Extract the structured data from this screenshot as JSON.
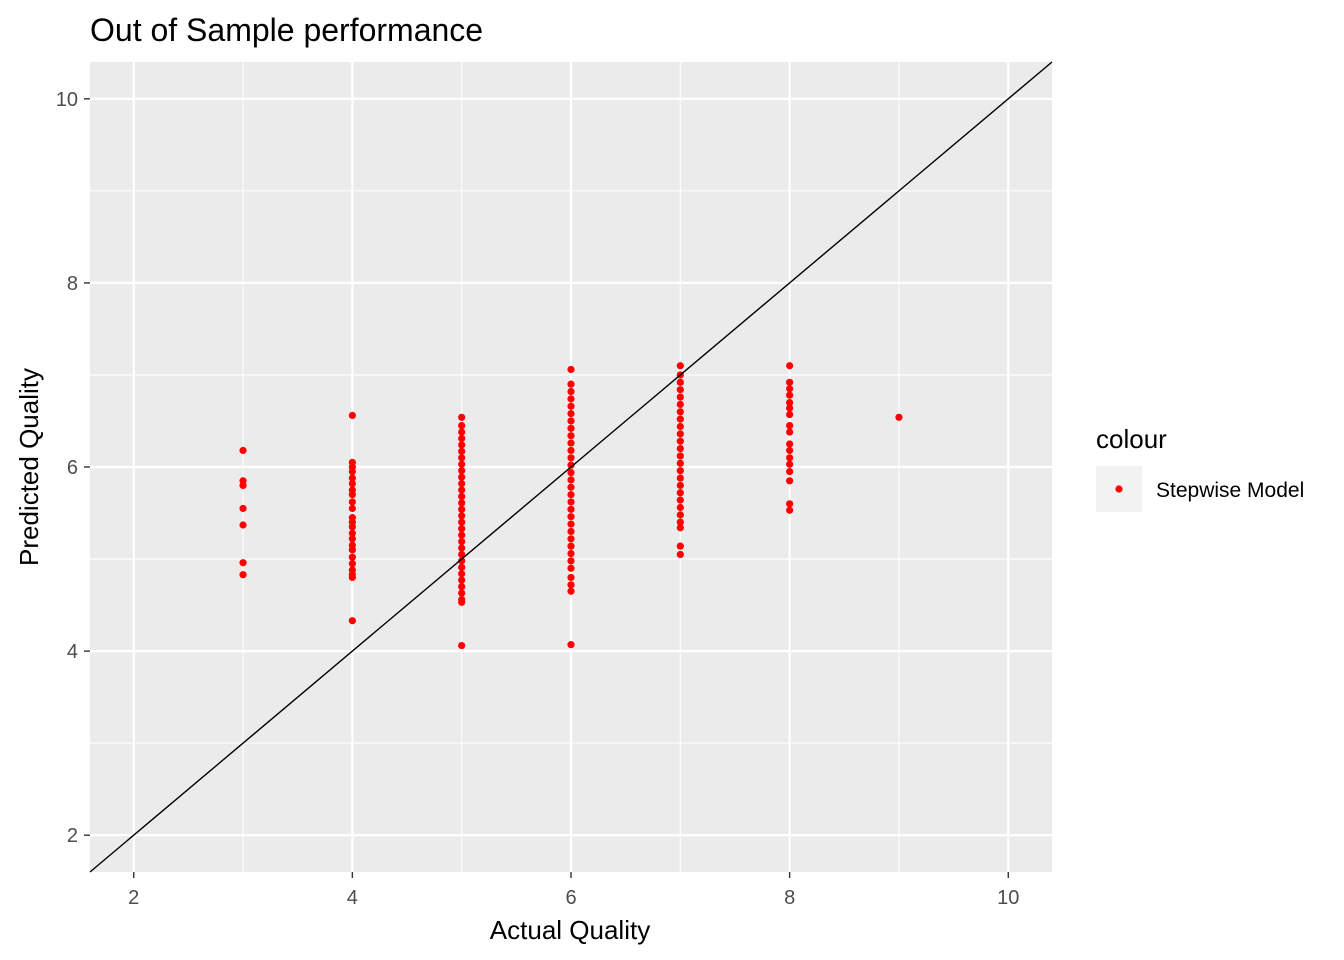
{
  "chart_data": {
    "type": "scatter",
    "title": "Out of Sample performance",
    "xlabel": "Actual Quality",
    "ylabel": "Predicted Quality",
    "xlim": [
      1.6,
      10.4
    ],
    "ylim": [
      1.6,
      10.4
    ],
    "x_ticks": [
      2,
      4,
      6,
      8,
      10
    ],
    "y_ticks": [
      2,
      4,
      6,
      8,
      10
    ],
    "x_tick_labels": [
      "2",
      "4",
      "6",
      "8",
      "10"
    ],
    "y_tick_labels": [
      "2",
      "4",
      "6",
      "8",
      "10"
    ],
    "grid": true,
    "reference_line": {
      "slope": 1,
      "intercept": 0,
      "color": "#000000"
    },
    "legend": {
      "title": "colour",
      "position": "right"
    },
    "series": [
      {
        "name": "Stepwise Model",
        "color": "#ff0000",
        "points": [
          {
            "x": 3,
            "y": 6.18
          },
          {
            "x": 3,
            "y": 5.85
          },
          {
            "x": 3,
            "y": 5.8
          },
          {
            "x": 3,
            "y": 5.55
          },
          {
            "x": 3,
            "y": 5.37
          },
          {
            "x": 3,
            "y": 4.96
          },
          {
            "x": 3,
            "y": 4.83
          },
          {
            "x": 4,
            "y": 6.56
          },
          {
            "x": 4,
            "y": 6.05
          },
          {
            "x": 4,
            "y": 6.0
          },
          {
            "x": 4,
            "y": 5.95
          },
          {
            "x": 4,
            "y": 5.88
          },
          {
            "x": 4,
            "y": 5.82
          },
          {
            "x": 4,
            "y": 5.75
          },
          {
            "x": 4,
            "y": 5.7
          },
          {
            "x": 4,
            "y": 5.62
          },
          {
            "x": 4,
            "y": 5.55
          },
          {
            "x": 4,
            "y": 5.45
          },
          {
            "x": 4,
            "y": 5.4
          },
          {
            "x": 4,
            "y": 5.35
          },
          {
            "x": 4,
            "y": 5.28
          },
          {
            "x": 4,
            "y": 5.22
          },
          {
            "x": 4,
            "y": 5.15
          },
          {
            "x": 4,
            "y": 5.1
          },
          {
            "x": 4,
            "y": 5.02
          },
          {
            "x": 4,
            "y": 4.95
          },
          {
            "x": 4,
            "y": 4.88
          },
          {
            "x": 4,
            "y": 4.83
          },
          {
            "x": 4,
            "y": 4.8
          },
          {
            "x": 4,
            "y": 4.33
          },
          {
            "x": 5,
            "y": 6.54
          },
          {
            "x": 5,
            "y": 6.45
          },
          {
            "x": 5,
            "y": 6.38
          },
          {
            "x": 5,
            "y": 6.31
          },
          {
            "x": 5,
            "y": 6.24
          },
          {
            "x": 5,
            "y": 6.17
          },
          {
            "x": 5,
            "y": 6.1
          },
          {
            "x": 5,
            "y": 6.03
          },
          {
            "x": 5,
            "y": 5.96
          },
          {
            "x": 5,
            "y": 5.89
          },
          {
            "x": 5,
            "y": 5.82
          },
          {
            "x": 5,
            "y": 5.75
          },
          {
            "x": 5,
            "y": 5.68
          },
          {
            "x": 5,
            "y": 5.61
          },
          {
            "x": 5,
            "y": 5.54
          },
          {
            "x": 5,
            "y": 5.47
          },
          {
            "x": 5,
            "y": 5.4
          },
          {
            "x": 5,
            "y": 5.33
          },
          {
            "x": 5,
            "y": 5.26
          },
          {
            "x": 5,
            "y": 5.19
          },
          {
            "x": 5,
            "y": 5.12
          },
          {
            "x": 5,
            "y": 5.05
          },
          {
            "x": 5,
            "y": 4.98
          },
          {
            "x": 5,
            "y": 4.91
          },
          {
            "x": 5,
            "y": 4.84
          },
          {
            "x": 5,
            "y": 4.77
          },
          {
            "x": 5,
            "y": 4.7
          },
          {
            "x": 5,
            "y": 4.63
          },
          {
            "x": 5,
            "y": 4.56
          },
          {
            "x": 5,
            "y": 4.53
          },
          {
            "x": 5,
            "y": 4.06
          },
          {
            "x": 6,
            "y": 7.06
          },
          {
            "x": 6,
            "y": 6.9
          },
          {
            "x": 6,
            "y": 6.82
          },
          {
            "x": 6,
            "y": 6.74
          },
          {
            "x": 6,
            "y": 6.66
          },
          {
            "x": 6,
            "y": 6.58
          },
          {
            "x": 6,
            "y": 6.5
          },
          {
            "x": 6,
            "y": 6.42
          },
          {
            "x": 6,
            "y": 6.34
          },
          {
            "x": 6,
            "y": 6.26
          },
          {
            "x": 6,
            "y": 6.18
          },
          {
            "x": 6,
            "y": 6.1
          },
          {
            "x": 6,
            "y": 6.02
          },
          {
            "x": 6,
            "y": 5.94
          },
          {
            "x": 6,
            "y": 5.86
          },
          {
            "x": 6,
            "y": 5.78
          },
          {
            "x": 6,
            "y": 5.7
          },
          {
            "x": 6,
            "y": 5.62
          },
          {
            "x": 6,
            "y": 5.54
          },
          {
            "x": 6,
            "y": 5.46
          },
          {
            "x": 6,
            "y": 5.38
          },
          {
            "x": 6,
            "y": 5.3
          },
          {
            "x": 6,
            "y": 5.22
          },
          {
            "x": 6,
            "y": 5.14
          },
          {
            "x": 6,
            "y": 5.06
          },
          {
            "x": 6,
            "y": 4.98
          },
          {
            "x": 6,
            "y": 4.9
          },
          {
            "x": 6,
            "y": 4.8
          },
          {
            "x": 6,
            "y": 4.72
          },
          {
            "x": 6,
            "y": 4.65
          },
          {
            "x": 6,
            "y": 4.07
          },
          {
            "x": 7,
            "y": 7.1
          },
          {
            "x": 7,
            "y": 7.0
          },
          {
            "x": 7,
            "y": 6.92
          },
          {
            "x": 7,
            "y": 6.84
          },
          {
            "x": 7,
            "y": 6.76
          },
          {
            "x": 7,
            "y": 6.68
          },
          {
            "x": 7,
            "y": 6.6
          },
          {
            "x": 7,
            "y": 6.52
          },
          {
            "x": 7,
            "y": 6.44
          },
          {
            "x": 7,
            "y": 6.36
          },
          {
            "x": 7,
            "y": 6.28
          },
          {
            "x": 7,
            "y": 6.2
          },
          {
            "x": 7,
            "y": 6.12
          },
          {
            "x": 7,
            "y": 6.04
          },
          {
            "x": 7,
            "y": 5.96
          },
          {
            "x": 7,
            "y": 5.88
          },
          {
            "x": 7,
            "y": 5.8
          },
          {
            "x": 7,
            "y": 5.72
          },
          {
            "x": 7,
            "y": 5.64
          },
          {
            "x": 7,
            "y": 5.56
          },
          {
            "x": 7,
            "y": 5.48
          },
          {
            "x": 7,
            "y": 5.4
          },
          {
            "x": 7,
            "y": 5.34
          },
          {
            "x": 7,
            "y": 5.14
          },
          {
            "x": 7,
            "y": 5.05
          },
          {
            "x": 8,
            "y": 7.1
          },
          {
            "x": 8,
            "y": 6.92
          },
          {
            "x": 8,
            "y": 6.85
          },
          {
            "x": 8,
            "y": 6.78
          },
          {
            "x": 8,
            "y": 6.7
          },
          {
            "x": 8,
            "y": 6.64
          },
          {
            "x": 8,
            "y": 6.57
          },
          {
            "x": 8,
            "y": 6.45
          },
          {
            "x": 8,
            "y": 6.38
          },
          {
            "x": 8,
            "y": 6.25
          },
          {
            "x": 8,
            "y": 6.18
          },
          {
            "x": 8,
            "y": 6.1
          },
          {
            "x": 8,
            "y": 6.03
          },
          {
            "x": 8,
            "y": 5.95
          },
          {
            "x": 8,
            "y": 5.85
          },
          {
            "x": 8,
            "y": 5.6
          },
          {
            "x": 8,
            "y": 5.53
          },
          {
            "x": 9,
            "y": 6.54
          }
        ]
      }
    ]
  }
}
